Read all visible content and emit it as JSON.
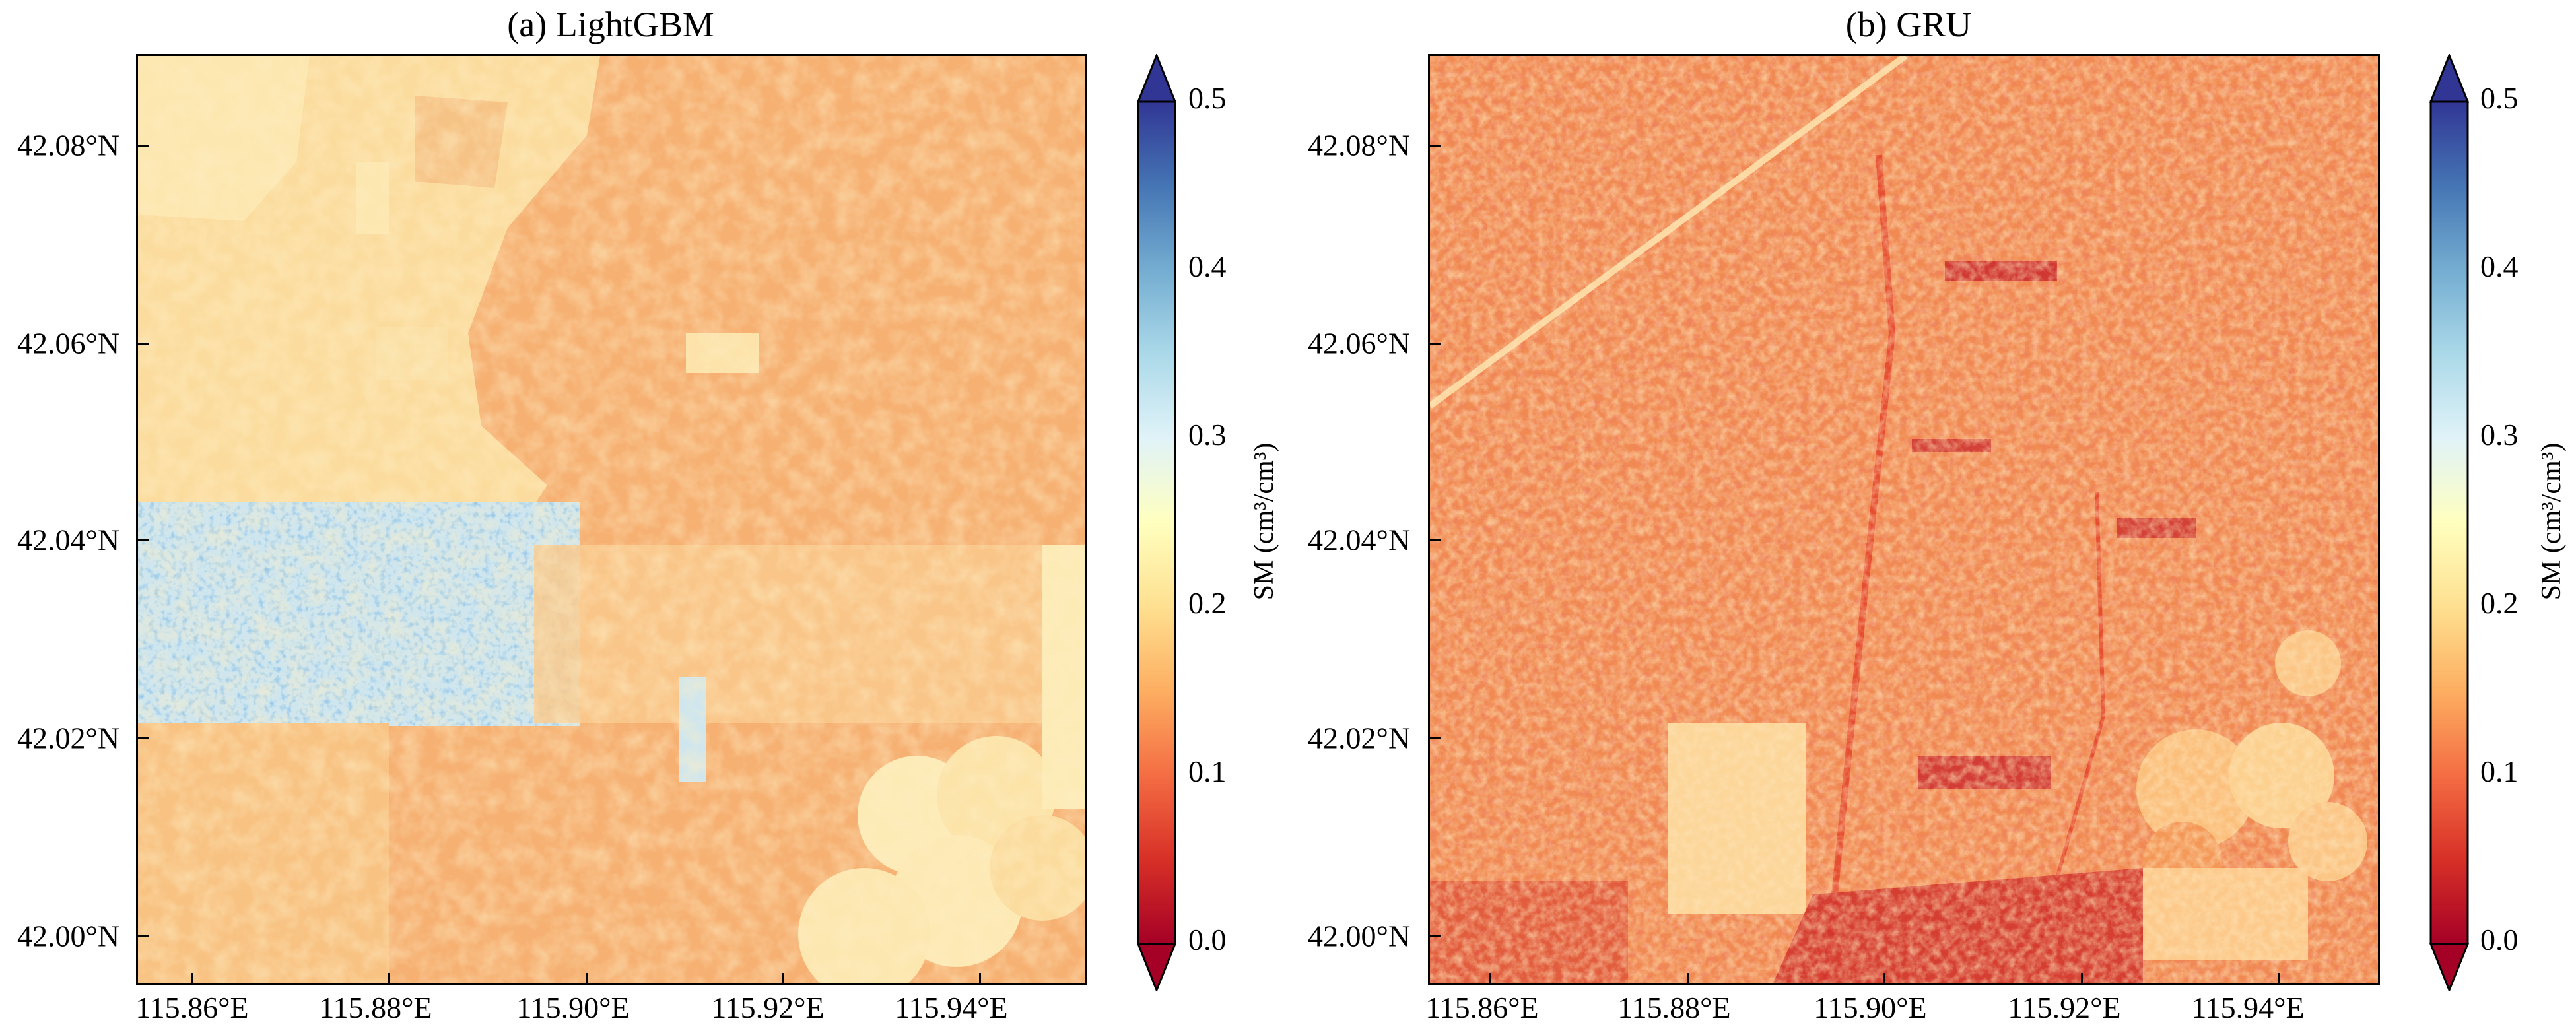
{
  "panels": [
    {
      "title": "(a) LightGBM",
      "model": "lightgbm",
      "y_ticks": [
        "42.08°N",
        "42.06°N",
        "42.04°N",
        "42.02°N",
        "42.00°N"
      ],
      "x_ticks": [
        "115.86°E",
        "115.88°E",
        "115.90°E",
        "115.92°E",
        "115.94°E"
      ],
      "colorbar": {
        "label": "SM (cm³/cm³)",
        "ticks": [
          "0.0",
          "0.1",
          "0.2",
          "0.3",
          "0.4",
          "0.5"
        ],
        "extend": "both"
      }
    },
    {
      "title": "(b) GRU",
      "model": "gru",
      "y_ticks": [
        "42.08°N",
        "42.06°N",
        "42.04°N",
        "42.02°N",
        "42.00°N"
      ],
      "x_ticks": [
        "115.86°E",
        "115.88°E",
        "115.90°E",
        "115.92°E",
        "115.94°E"
      ],
      "colorbar": {
        "label": "SM (cm³/cm³)",
        "ticks": [
          "0.0",
          "0.1",
          "0.2",
          "0.3",
          "0.4",
          "0.5"
        ],
        "extend": "both"
      }
    }
  ],
  "colormap": {
    "name": "RdYlBu",
    "stops": [
      "#a50026",
      "#d73027",
      "#f46d43",
      "#fdae61",
      "#fee090",
      "#ffffbf",
      "#e0f3f8",
      "#abd9e9",
      "#74add1",
      "#4575b4",
      "#313695"
    ],
    "vmin": 0.0,
    "vmax": 0.5
  }
}
